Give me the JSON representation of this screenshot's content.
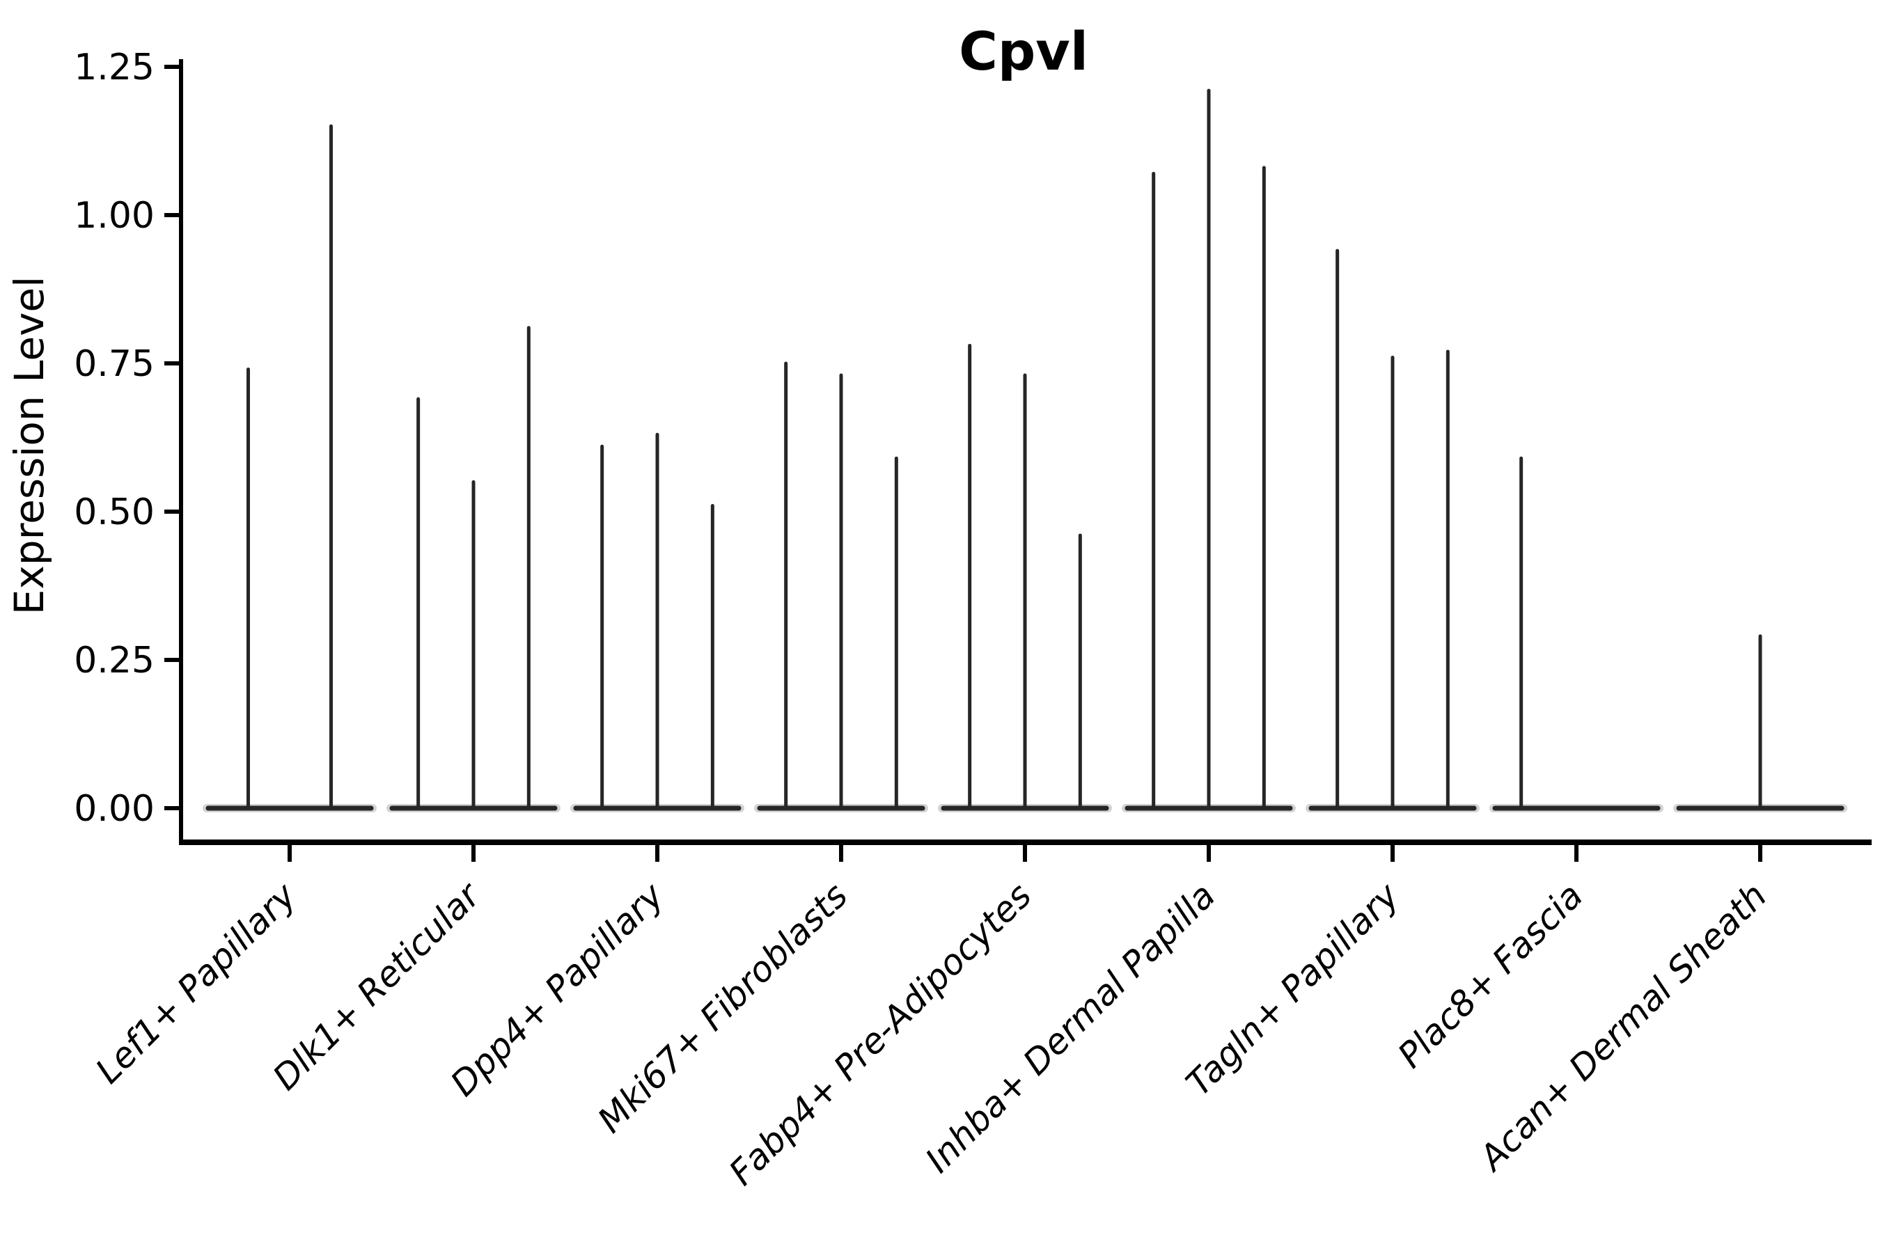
{
  "chart_data": {
    "type": "violin",
    "title": "Cpvl",
    "ylabel": "Expression Level",
    "xlabel": "",
    "ylim": [
      0,
      1.25
    ],
    "yticks": [
      0,
      0.25,
      0.5,
      0.75,
      1.0,
      1.25
    ],
    "ytick_labels": [
      "0.00",
      "0.25",
      "0.50",
      "0.75",
      "1.00",
      "1.25"
    ],
    "grid": false,
    "legend": false,
    "x_label_rotation_deg": 45,
    "categories": [
      "Lef1+ Papillary",
      "Dlk1+ Reticular",
      "Dpp4+ Papillary",
      "Mki67+ Fibroblasts",
      "Fabp4+ Pre-Adipocytes",
      "Inhba+ Dermal Papilla",
      "Tagln+ Papillary",
      "Plac8+ Fascia",
      "Acan+ Dermal Sheath"
    ],
    "series": [
      {
        "category": "Lef1+ Papillary",
        "violin_maxima": [
          0.74,
          1.15
        ]
      },
      {
        "category": "Dlk1+ Reticular",
        "violin_maxima": [
          0.69,
          0.55,
          0.81
        ]
      },
      {
        "category": "Dpp4+ Papillary",
        "violin_maxima": [
          0.61,
          0.63,
          0.51
        ]
      },
      {
        "category": "Mki67+ Fibroblasts",
        "violin_maxima": [
          0.75,
          0.73,
          0.59
        ]
      },
      {
        "category": "Fabp4+ Pre-Adipocytes",
        "violin_maxima": [
          0.78,
          0.73,
          0.46
        ]
      },
      {
        "category": "Inhba+ Dermal Papilla",
        "violin_maxima": [
          1.07,
          1.21,
          1.08
        ]
      },
      {
        "category": "Tagln+ Papillary",
        "violin_maxima": [
          0.94,
          0.76,
          0.77
        ]
      },
      {
        "category": "Plac8+ Fascia",
        "violin_maxima": [
          0.59,
          0,
          0
        ]
      },
      {
        "category": "Acan+ Dermal Sheath",
        "violin_maxima": [
          0,
          0.29,
          0
        ]
      }
    ],
    "baseline_value": 0
  },
  "colors": {
    "violin_line": "#262626",
    "violin_halo": "#b0b0b0",
    "axis_line": "#000000",
    "text": "#000000",
    "background": "#ffffff"
  }
}
